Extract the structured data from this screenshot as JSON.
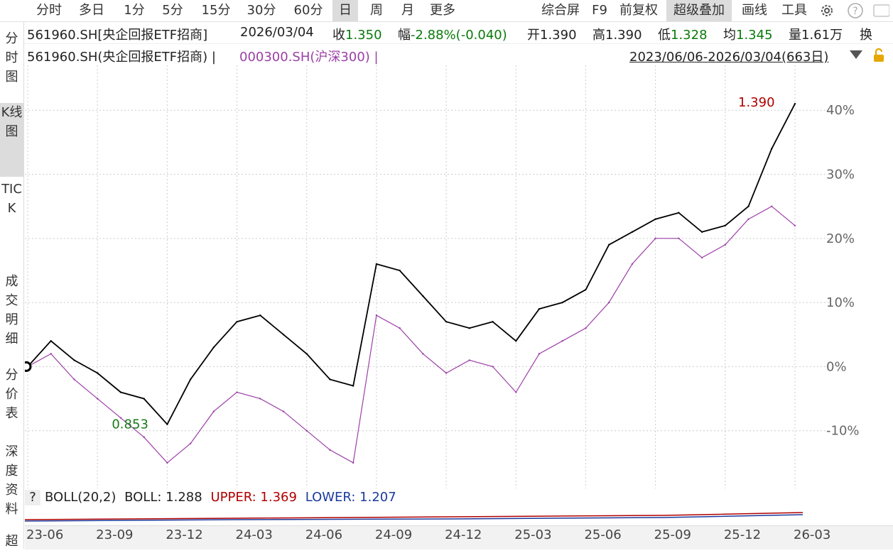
{
  "toolbar": {
    "periods": [
      "分时",
      "多日",
      "1分",
      "5分",
      "15分",
      "30分",
      "60分",
      "日",
      "周",
      "月",
      "更多"
    ],
    "active_period": "日",
    "right_items": [
      "综合屏",
      "F9",
      "前复权",
      "超级叠加",
      "画线",
      "工具"
    ],
    "right_active": "超级叠加"
  },
  "quote": {
    "code_name": "561960.SH[央企回报ETF招商]",
    "date": "2026/03/04",
    "close_label": "收",
    "close": "1.350",
    "change_label": "幅",
    "change": "-2.88%(-0.040)",
    "open_label": "开",
    "open": "1.390",
    "high_label": "高",
    "high": "1.390",
    "low_label": "低",
    "low": "1.328",
    "avg_label": "均",
    "avg": "1.345",
    "vol_label": "量",
    "vol": "1.61万",
    "more_label": "换"
  },
  "legend": {
    "main": "561960.SH(央企回报ETF招商) |",
    "overlay": "000300.SH(沪深300) |",
    "range": "2023/06/06-2026/03/04(663日)"
  },
  "left_tabs": [
    "分时图",
    "K线图",
    "TICK",
    "成交明细",
    "分价表",
    "深度资料",
    "超"
  ],
  "left_tab_active": "K线图",
  "boll": {
    "qmark": "?",
    "name": "BOLL(20,2)",
    "boll": "BOLL: 1.288",
    "upper": "UPPER: 1.369",
    "lower": "LOWER: 1.207"
  },
  "colors": {
    "main_line": "#000000",
    "overlay_line": "#9b3fa6",
    "high_label": "#b00000",
    "low_label": "#1a7a1a",
    "upper": "#b00000",
    "lower": "#1b3a9e",
    "down": "#0a7a0a"
  },
  "chart_data": {
    "type": "line",
    "x": [
      "2023-06",
      "2023-07",
      "2023-08",
      "2023-09",
      "2023-10",
      "2023-11",
      "2023-12",
      "2024-01",
      "2024-02",
      "2024-03",
      "2024-04",
      "2024-05",
      "2024-06",
      "2024-07",
      "2024-08",
      "2024-09",
      "2024-10",
      "2024-11",
      "2024-12",
      "2025-01",
      "2025-02",
      "2025-03",
      "2025-04",
      "2025-05",
      "2025-06",
      "2025-07",
      "2025-08",
      "2025-09",
      "2025-10",
      "2025-11",
      "2025-12",
      "2026-01",
      "2026-02",
      "2026-03"
    ],
    "x_ticks": [
      "23-06",
      "23-09",
      "23-12",
      "24-03",
      "24-06",
      "24-09",
      "24-12",
      "25-03",
      "25-06",
      "25-09",
      "25-12",
      "26-03"
    ],
    "y_ticks": [
      "40%",
      "30%",
      "20%",
      "10%",
      "0%",
      "-10%"
    ],
    "ylim": [
      -19,
      47
    ],
    "series": [
      {
        "name": "561960.SH(央企回报ETF招商)",
        "values": [
          0,
          4,
          1,
          -1,
          -4,
          -5,
          -9,
          -2,
          3,
          7,
          8,
          5,
          2,
          -2,
          -3,
          16,
          15,
          11,
          7,
          6,
          7,
          4,
          9,
          10,
          12,
          19,
          21,
          23,
          24,
          21,
          22,
          25,
          34,
          41
        ]
      },
      {
        "name": "000300.SH(沪深300)",
        "values": [
          0,
          2,
          -2,
          -5,
          -8,
          -11,
          -15,
          -12,
          -7,
          -4,
          -5,
          -7,
          -10,
          -13,
          -15,
          8,
          6,
          2,
          -1,
          1,
          0,
          -4,
          2,
          4,
          6,
          10,
          16,
          20,
          20,
          17,
          19,
          23,
          25,
          22
        ]
      }
    ],
    "annotations": {
      "high": "1.390",
      "low": "0.853"
    }
  }
}
